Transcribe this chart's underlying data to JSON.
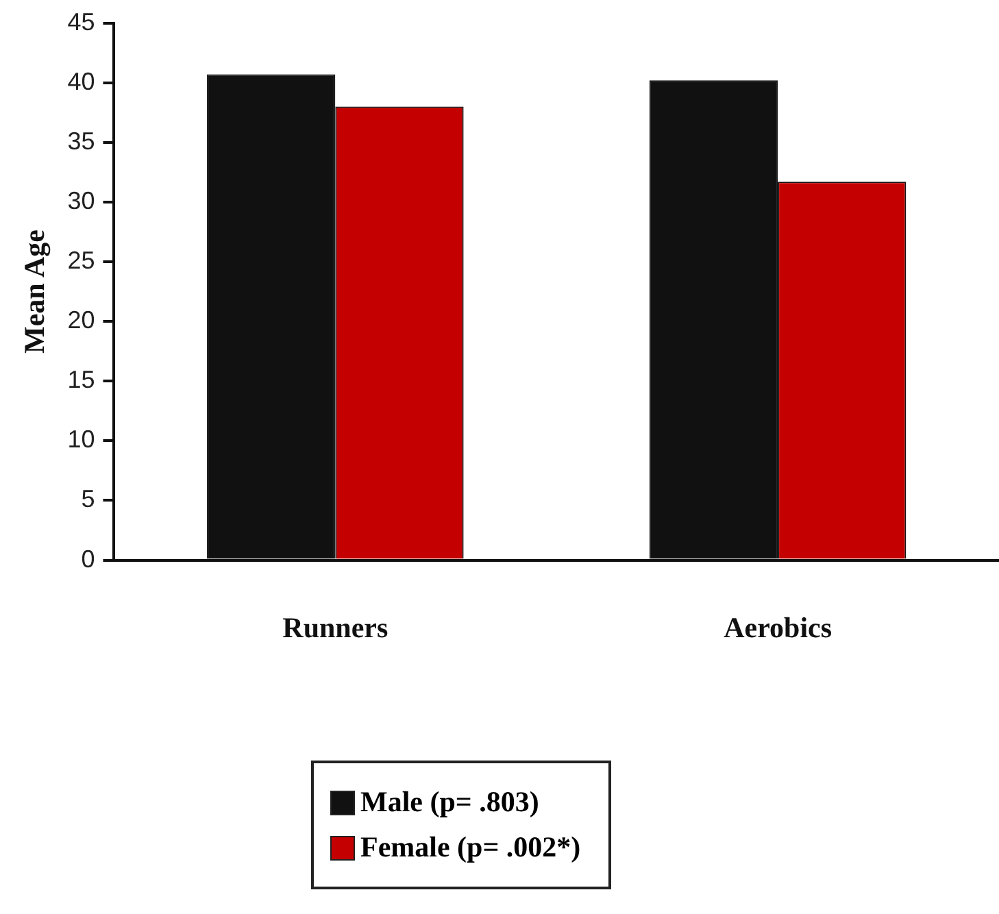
{
  "chart_data": {
    "type": "bar",
    "ylabel": "Mean Age",
    "categories": [
      "Runners",
      "Aerobics"
    ],
    "series": [
      {
        "name": "Male (p= .803)",
        "color": "#111111",
        "values": [
          40.7,
          40.2
        ]
      },
      {
        "name": "Female (p= .002*)",
        "color": "#c40000",
        "values": [
          38.0,
          31.7
        ]
      }
    ],
    "ylim": [
      0,
      45
    ],
    "yticks": [
      0,
      5,
      10,
      15,
      20,
      25,
      30,
      35,
      40,
      45
    ],
    "grid": false,
    "legend": "bottom"
  }
}
